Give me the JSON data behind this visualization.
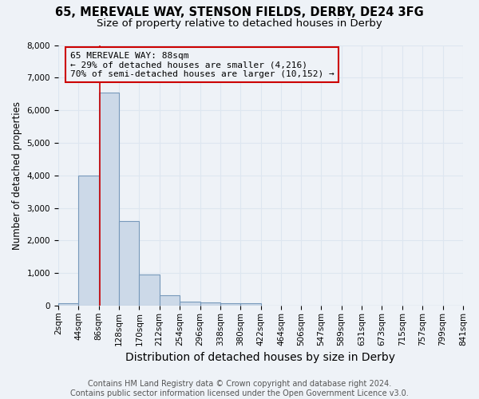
{
  "title1": "65, MEREVALE WAY, STENSON FIELDS, DERBY, DE24 3FG",
  "title2": "Size of property relative to detached houses in Derby",
  "xlabel": "Distribution of detached houses by size in Derby",
  "ylabel": "Number of detached properties",
  "bar_color": "#ccd9e8",
  "bar_edge_color": "#7799bb",
  "bin_starts": [
    2,
    44,
    86,
    128,
    170,
    212,
    254,
    296,
    338,
    380,
    422,
    464,
    506,
    547,
    589,
    631,
    673,
    715,
    757,
    799
  ],
  "bin_width": 42,
  "bar_heights": [
    75,
    4000,
    6550,
    2600,
    950,
    320,
    130,
    100,
    75,
    75,
    0,
    0,
    0,
    0,
    0,
    0,
    0,
    0,
    0,
    0
  ],
  "property_size": 88,
  "vline_color": "#cc0000",
  "annotation_line1": "65 MEREVALE WAY: 88sqm",
  "annotation_line2": "← 29% of detached houses are smaller (4,216)",
  "annotation_line3": "70% of semi-detached houses are larger (10,152) →",
  "ylim": [
    0,
    8000
  ],
  "yticks": [
    0,
    1000,
    2000,
    3000,
    4000,
    5000,
    6000,
    7000,
    8000
  ],
  "xtick_labels": [
    "2sqm",
    "44sqm",
    "86sqm",
    "128sqm",
    "170sqm",
    "212sqm",
    "254sqm",
    "296sqm",
    "338sqm",
    "380sqm",
    "422sqm",
    "464sqm",
    "506sqm",
    "547sqm",
    "589sqm",
    "631sqm",
    "673sqm",
    "715sqm",
    "757sqm",
    "799sqm",
    "841sqm"
  ],
  "grid_color": "#dde6f0",
  "footer_text": "Contains HM Land Registry data © Crown copyright and database right 2024.\nContains public sector information licensed under the Open Government Licence v3.0.",
  "bg_color": "#eef2f7",
  "title1_fontsize": 10.5,
  "title2_fontsize": 9.5,
  "xlabel_fontsize": 10,
  "ylabel_fontsize": 8.5,
  "tick_fontsize": 7.5,
  "footer_fontsize": 7,
  "annotation_fontsize": 8
}
